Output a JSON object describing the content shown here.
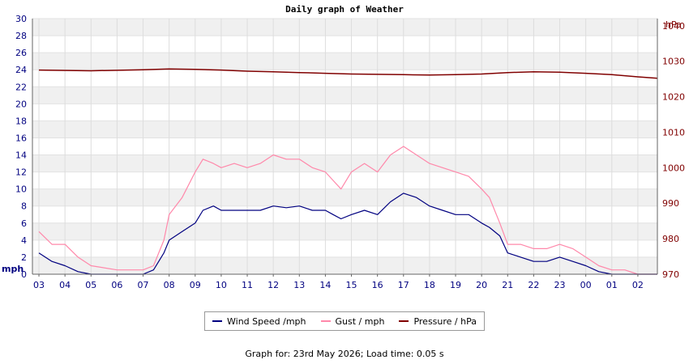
{
  "chart_data": {
    "type": "line",
    "title": "Daily graph of Weather",
    "left_axis": {
      "unit_label": "mph",
      "range": [
        0,
        30
      ],
      "ticks": [
        0,
        2,
        4,
        6,
        8,
        10,
        12,
        14,
        16,
        18,
        20,
        22,
        24,
        26,
        28,
        30
      ]
    },
    "right_axis": {
      "unit_label": "hPa",
      "range": [
        970,
        1042
      ],
      "ticks": [
        970,
        980,
        990,
        1000,
        1010,
        1020,
        1030,
        1040
      ]
    },
    "x_axis": {
      "unit": "hour of day",
      "ticks": [
        "03",
        "04",
        "05",
        "06",
        "07",
        "08",
        "09",
        "10",
        "11",
        "12",
        "13",
        "14",
        "15",
        "16",
        "17",
        "18",
        "19",
        "20",
        "21",
        "22",
        "23",
        "00",
        "01",
        "02"
      ]
    },
    "grid": true,
    "series": [
      {
        "name": "Wind Speed /mph",
        "axis": "left",
        "color": "#000080",
        "x": [
          3,
          3.5,
          4,
          4.5,
          5,
          6,
          7,
          7.4,
          7.8,
          8,
          8.5,
          9,
          9.3,
          9.7,
          10,
          10.5,
          11,
          11.5,
          12,
          12.5,
          13,
          13.5,
          14,
          14.3,
          14.6,
          15,
          15.5,
          16,
          16.5,
          17,
          17.5,
          18,
          18.5,
          19,
          19.5,
          20,
          20.3,
          20.7,
          21,
          21.5,
          22,
          22.5,
          23,
          23.5,
          24,
          24.5,
          25,
          25.5,
          26,
          26.75
        ],
        "values": [
          2.5,
          1.5,
          1.0,
          0.3,
          0.0,
          0.0,
          0.0,
          0.5,
          2.5,
          4.0,
          5.0,
          6.0,
          7.5,
          8.0,
          7.5,
          7.5,
          7.5,
          7.5,
          8.0,
          7.8,
          8.0,
          7.5,
          7.5,
          7.0,
          6.5,
          7.0,
          7.5,
          7.0,
          8.5,
          9.5,
          9.0,
          8.0,
          7.5,
          7.0,
          7.0,
          6.0,
          5.5,
          4.5,
          2.5,
          2.0,
          1.5,
          1.5,
          2.0,
          1.5,
          1.0,
          0.3,
          0.0,
          0.0,
          0.0,
          0.0
        ]
      },
      {
        "name": "Gust / mph",
        "axis": "left",
        "color": "#ff88aa",
        "x": [
          3,
          3.5,
          4,
          4.5,
          5,
          6,
          7,
          7.4,
          7.8,
          8,
          8.5,
          9,
          9.3,
          9.7,
          10,
          10.5,
          11,
          11.5,
          12,
          12.5,
          13,
          13.5,
          14,
          14.3,
          14.6,
          15,
          15.5,
          16,
          16.5,
          17,
          17.5,
          18,
          18.5,
          19,
          19.5,
          20,
          20.3,
          20.7,
          21,
          21.5,
          22,
          22.5,
          23,
          23.5,
          24,
          24.5,
          25,
          25.5,
          26,
          26.75
        ],
        "values": [
          5.0,
          3.5,
          3.5,
          2.0,
          1.0,
          0.5,
          0.5,
          1.0,
          4.0,
          7.0,
          9.0,
          12.0,
          13.5,
          13.0,
          12.5,
          13.0,
          12.5,
          13.0,
          14.0,
          13.5,
          13.5,
          12.5,
          12.0,
          11.0,
          10.0,
          12.0,
          13.0,
          12.0,
          14.0,
          15.0,
          14.0,
          13.0,
          12.5,
          12.0,
          11.5,
          10.0,
          9.0,
          6.0,
          3.5,
          3.5,
          3.0,
          3.0,
          3.5,
          3.0,
          2.0,
          1.0,
          0.5,
          0.5,
          0.0,
          0.0
        ]
      },
      {
        "name": "Pressure / hPa",
        "axis": "right",
        "color": "#800000",
        "x": [
          3,
          5,
          7,
          8,
          9,
          10,
          11,
          12,
          13,
          14,
          15,
          16,
          17,
          18,
          19,
          20,
          21,
          22,
          23,
          24,
          25,
          26,
          26.75
        ],
        "values": [
          1027.5,
          1027.3,
          1027.6,
          1027.8,
          1027.7,
          1027.5,
          1027.2,
          1027.0,
          1026.8,
          1026.6,
          1026.4,
          1026.3,
          1026.2,
          1026.1,
          1026.2,
          1026.4,
          1026.8,
          1027.0,
          1026.9,
          1026.6,
          1026.2,
          1025.6,
          1025.2
        ]
      }
    ]
  },
  "legend": {
    "wind": "Wind Speed /mph",
    "gust": "Gust / mph",
    "pressure": "Pressure / hPa"
  },
  "footer": {
    "text": "Graph for: 23rd May 2026; Load time: 0.05 s"
  },
  "colors": {
    "wind": "#000080",
    "gust": "#ff88aa",
    "pressure": "#800000",
    "band": "#f0f0f0",
    "grid": "#cccccc"
  }
}
